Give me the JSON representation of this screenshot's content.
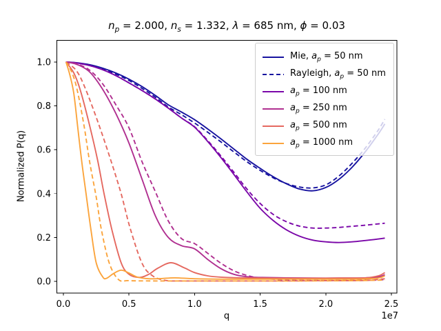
{
  "figure": {
    "xlabel": "q",
    "ylabel": "Normalized P(q)",
    "axis_offset_label": "1e7",
    "title": "nₚ = 2.000, nₛ = 1.332, λ = 685 nm, ϕ = 0.03",
    "title_parts": [
      "n",
      "p",
      " = 2.000, ",
      "n",
      "s",
      " = 1.332, ",
      "λ",
      " = 685 nm, ",
      "ϕ",
      " = 0.03"
    ]
  },
  "legend": {
    "entries": [
      {
        "parts": [
          "Mie, ",
          "a",
          "p",
          " = 50 nm"
        ],
        "color": "#16129f",
        "style": "solid"
      },
      {
        "parts": [
          "Rayleigh, ",
          "a",
          "p",
          " = 50 nm"
        ],
        "color": "#16129f",
        "style": "dashed"
      },
      {
        "parts": [
          "",
          "a",
          "p",
          " = 100 nm"
        ],
        "color": "#7a06a8",
        "style": "solid"
      },
      {
        "parts": [
          "",
          "a",
          "p",
          " = 250 nm"
        ],
        "color": "#b02f90",
        "style": "solid"
      },
      {
        "parts": [
          "",
          "a",
          "p",
          " = 500 nm"
        ],
        "color": "#e5685f",
        "style": "solid"
      },
      {
        "parts": [
          "",
          "a",
          "p",
          " = 1000 nm"
        ],
        "color": "#fba43c",
        "style": "solid"
      }
    ]
  },
  "chart_data": {
    "type": "line",
    "title": "n_p = 2.000, n_s = 1.332, lambda = 685 nm, phi = 0.03",
    "xlabel": "q",
    "ylabel": "Normalized P(q)",
    "x_unit": "1e7",
    "xlim": [
      -0.0525,
      2.542
    ],
    "ylim": [
      -0.0535,
      1.1006
    ],
    "grid": false,
    "legend_position": "upper right",
    "x_ticks": {
      "values": [
        0,
        0.5,
        1.0,
        1.5,
        2.0,
        2.5
      ],
      "labels": [
        "0.0",
        "0.5",
        "1.0",
        "1.5",
        "2.0",
        "2.5"
      ]
    },
    "y_ticks": {
      "values": [
        0,
        0.2,
        0.4,
        0.6,
        0.8,
        1.0
      ],
      "labels": [
        "0.0",
        "0.2",
        "0.4",
        "0.6",
        "0.8",
        "1.0"
      ]
    },
    "series": [
      {
        "name": "mie-ap-50nm",
        "model": "Mie",
        "ap_nm": 50,
        "style": "solid",
        "color": "#16129f",
        "x": [
          0.02,
          0.1,
          0.2,
          0.3,
          0.4,
          0.5,
          0.6,
          0.7,
          0.8,
          0.9,
          1.0,
          1.1,
          1.2,
          1.3,
          1.4,
          1.5,
          1.6,
          1.7,
          1.8,
          1.9,
          2.0,
          2.1,
          2.2,
          2.3,
          2.4,
          2.45
        ],
        "y": [
          1.0,
          0.997,
          0.988,
          0.972,
          0.95,
          0.922,
          0.888,
          0.848,
          0.805,
          0.772,
          0.737,
          0.695,
          0.65,
          0.603,
          0.556,
          0.515,
          0.477,
          0.445,
          0.421,
          0.413,
          0.428,
          0.465,
          0.52,
          0.59,
          0.672,
          0.718
        ]
      },
      {
        "name": "rayleigh-ap-50nm",
        "model": "Rayleigh",
        "ap_nm": 50,
        "style": "dashed",
        "color": "#16129f",
        "x": [
          0.02,
          0.1,
          0.2,
          0.3,
          0.4,
          0.5,
          0.6,
          0.7,
          0.8,
          0.9,
          1.0,
          1.1,
          1.2,
          1.3,
          1.4,
          1.5,
          1.6,
          1.7,
          1.8,
          1.9,
          2.0,
          2.1,
          2.2,
          2.3,
          2.4,
          2.45
        ],
        "y": [
          1.0,
          0.996,
          0.985,
          0.968,
          0.945,
          0.916,
          0.88,
          0.84,
          0.795,
          0.76,
          0.722,
          0.68,
          0.636,
          0.59,
          0.545,
          0.506,
          0.472,
          0.446,
          0.43,
          0.426,
          0.44,
          0.48,
          0.538,
          0.607,
          0.69,
          0.74
        ]
      },
      {
        "name": "mie-ap-100nm",
        "model": "Mie",
        "ap_nm": 100,
        "style": "solid",
        "color": "#7a06a8",
        "x": [
          0.02,
          0.1,
          0.2,
          0.3,
          0.4,
          0.5,
          0.6,
          0.7,
          0.8,
          0.9,
          1.0,
          1.1,
          1.2,
          1.3,
          1.4,
          1.5,
          1.6,
          1.7,
          1.8,
          1.9,
          2.0,
          2.1,
          2.2,
          2.3,
          2.4,
          2.45
        ],
        "y": [
          1.0,
          0.996,
          0.984,
          0.965,
          0.938,
          0.905,
          0.87,
          0.832,
          0.79,
          0.745,
          0.703,
          0.638,
          0.565,
          0.487,
          0.407,
          0.333,
          0.277,
          0.235,
          0.206,
          0.188,
          0.18,
          0.177,
          0.18,
          0.186,
          0.193,
          0.197
        ]
      },
      {
        "name": "rayleigh-ap-100nm",
        "model": "Rayleigh",
        "ap_nm": 100,
        "style": "dashed",
        "color": "#7a06a8",
        "x": [
          0.02,
          0.1,
          0.2,
          0.3,
          0.4,
          0.5,
          0.6,
          0.7,
          0.8,
          0.9,
          1.0,
          1.1,
          1.2,
          1.3,
          1.4,
          1.5,
          1.6,
          1.7,
          1.8,
          1.9,
          2.0,
          2.1,
          2.2,
          2.3,
          2.4,
          2.45
        ],
        "y": [
          1.0,
          0.996,
          0.984,
          0.965,
          0.938,
          0.905,
          0.87,
          0.832,
          0.79,
          0.745,
          0.705,
          0.642,
          0.572,
          0.497,
          0.42,
          0.355,
          0.305,
          0.272,
          0.252,
          0.243,
          0.243,
          0.246,
          0.251,
          0.256,
          0.262,
          0.265
        ]
      },
      {
        "name": "mie-ap-250nm",
        "model": "Mie",
        "ap_nm": 250,
        "style": "solid",
        "color": "#b02f90",
        "x": [
          0.02,
          0.1,
          0.2,
          0.3,
          0.4,
          0.5,
          0.6,
          0.7,
          0.8,
          0.9,
          1.0,
          1.1,
          1.2,
          1.3,
          1.4,
          1.5,
          1.7,
          1.9,
          2.1,
          2.3,
          2.4,
          2.45
        ],
        "y": [
          1.0,
          0.99,
          0.955,
          0.875,
          0.765,
          0.63,
          0.465,
          0.3,
          0.2,
          0.163,
          0.148,
          0.1,
          0.058,
          0.032,
          0.021,
          0.018,
          0.016,
          0.015,
          0.015,
          0.016,
          0.02,
          0.03
        ]
      },
      {
        "name": "rayleigh-ap-250nm",
        "model": "Rayleigh",
        "ap_nm": 250,
        "style": "dashed",
        "color": "#b02f90",
        "x": [
          0.02,
          0.1,
          0.2,
          0.3,
          0.4,
          0.5,
          0.6,
          0.7,
          0.8,
          0.9,
          1.0,
          1.1,
          1.2,
          1.3,
          1.4,
          1.5,
          1.7,
          1.9,
          2.1,
          2.3,
          2.4,
          2.45
        ],
        "y": [
          1.0,
          0.992,
          0.963,
          0.9,
          0.805,
          0.7,
          0.545,
          0.41,
          0.275,
          0.195,
          0.172,
          0.128,
          0.083,
          0.048,
          0.027,
          0.015,
          0.006,
          0.004,
          0.004,
          0.005,
          0.006,
          0.008
        ]
      },
      {
        "name": "mie-ap-500nm",
        "model": "Mie",
        "ap_nm": 500,
        "style": "solid",
        "color": "#e5685f",
        "x": [
          0.02,
          0.08,
          0.13,
          0.2,
          0.26,
          0.31,
          0.37,
          0.44,
          0.5,
          0.58,
          0.65,
          0.72,
          0.82,
          0.92,
          1.0,
          1.1,
          1.2,
          1.35,
          1.5,
          1.7,
          1.9,
          2.1,
          2.3,
          2.4,
          2.45
        ],
        "y": [
          1.0,
          0.95,
          0.87,
          0.71,
          0.555,
          0.4,
          0.235,
          0.085,
          0.032,
          0.018,
          0.032,
          0.06,
          0.085,
          0.062,
          0.04,
          0.025,
          0.019,
          0.016,
          0.015,
          0.014,
          0.014,
          0.015,
          0.016,
          0.025,
          0.04
        ]
      },
      {
        "name": "rayleigh-ap-500nm",
        "model": "Rayleigh",
        "ap_nm": 500,
        "style": "dashed",
        "color": "#e5685f",
        "x": [
          0.02,
          0.1,
          0.17,
          0.27,
          0.36,
          0.44,
          0.51,
          0.6,
          0.68,
          0.78,
          0.9,
          1.1,
          1.4,
          1.7,
          2.0,
          2.3,
          2.45
        ],
        "y": [
          1.0,
          0.96,
          0.875,
          0.715,
          0.555,
          0.4,
          0.24,
          0.082,
          0.025,
          0.004,
          0.002,
          0.002,
          0.002,
          0.002,
          0.003,
          0.004,
          0.012
        ]
      },
      {
        "name": "mie-ap-1000nm",
        "model": "Mie",
        "ap_nm": 1000,
        "style": "solid",
        "color": "#fba43c",
        "x": [
          0.02,
          0.05,
          0.08,
          0.11,
          0.14,
          0.175,
          0.21,
          0.25,
          0.3,
          0.33,
          0.38,
          0.44,
          0.5,
          0.56,
          0.65,
          0.75,
          0.85,
          1.0,
          1.2,
          1.5,
          1.8,
          2.1,
          2.3,
          2.4,
          2.45
        ],
        "y": [
          1.0,
          0.94,
          0.855,
          0.7,
          0.545,
          0.39,
          0.235,
          0.085,
          0.02,
          0.014,
          0.035,
          0.051,
          0.038,
          0.02,
          0.012,
          0.013,
          0.016,
          0.012,
          0.01,
          0.01,
          0.01,
          0.01,
          0.011,
          0.015,
          0.025
        ]
      },
      {
        "name": "rayleigh-ap-1000nm",
        "model": "Rayleigh",
        "ap_nm": 1000,
        "style": "dashed",
        "color": "#fba43c",
        "x": [
          0.02,
          0.07,
          0.11,
          0.16,
          0.2,
          0.25,
          0.29,
          0.35,
          0.42,
          0.5,
          0.7,
          1.0,
          1.4,
          1.8,
          2.2,
          2.45
        ],
        "y": [
          1.0,
          0.945,
          0.86,
          0.7,
          0.545,
          0.385,
          0.235,
          0.083,
          0.008,
          0.003,
          0.002,
          0.002,
          0.002,
          0.002,
          0.003,
          0.006
        ]
      }
    ]
  }
}
